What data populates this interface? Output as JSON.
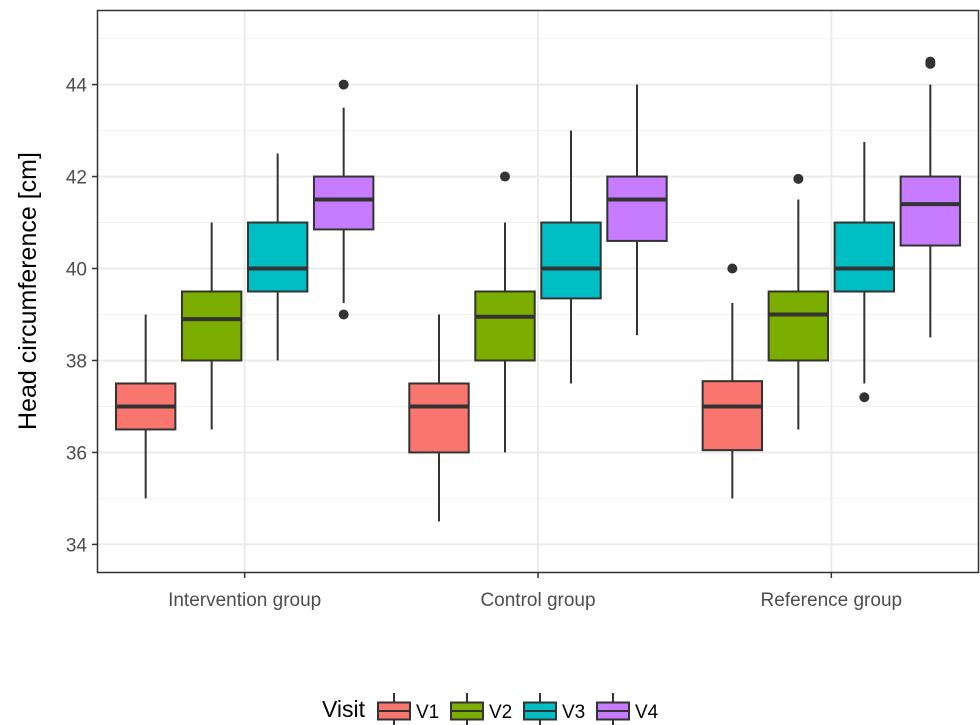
{
  "chart_data": {
    "type": "boxplot",
    "ylabel": "Head circumference [cm]",
    "xlabel": "",
    "ylim": [
      33.4,
      45.6
    ],
    "yticks": [
      34,
      36,
      38,
      40,
      42,
      44
    ],
    "grid": true,
    "legend": {
      "title": "Visit",
      "position": "bottom"
    },
    "categories": [
      "Intervention group",
      "Control group",
      "Reference group"
    ],
    "series": [
      {
        "name": "V1",
        "color": "#F8766D",
        "boxes": [
          {
            "whisker_low": 35.0,
            "q1": 36.5,
            "median": 37.0,
            "q3": 37.5,
            "whisker_high": 39.0,
            "outliers": []
          },
          {
            "whisker_low": 34.5,
            "q1": 36.0,
            "median": 37.0,
            "q3": 37.5,
            "whisker_high": 39.0,
            "outliers": []
          },
          {
            "whisker_low": 35.0,
            "q1": 36.05,
            "median": 37.0,
            "q3": 37.55,
            "whisker_high": 39.25,
            "outliers": [
              40.0
            ]
          }
        ]
      },
      {
        "name": "V2",
        "color": "#7CAE00",
        "boxes": [
          {
            "whisker_low": 36.5,
            "q1": 38.0,
            "median": 38.9,
            "q3": 39.5,
            "whisker_high": 41.0,
            "outliers": []
          },
          {
            "whisker_low": 36.0,
            "q1": 38.0,
            "median": 38.95,
            "q3": 39.5,
            "whisker_high": 41.0,
            "outliers": [
              42.0
            ]
          },
          {
            "whisker_low": 36.5,
            "q1": 38.0,
            "median": 39.0,
            "q3": 39.5,
            "whisker_high": 41.5,
            "outliers": [
              41.95
            ]
          }
        ]
      },
      {
        "name": "V3",
        "color": "#00BFC4",
        "boxes": [
          {
            "whisker_low": 38.0,
            "q1": 39.5,
            "median": 40.0,
            "q3": 41.0,
            "whisker_high": 42.5,
            "outliers": []
          },
          {
            "whisker_low": 37.5,
            "q1": 39.35,
            "median": 40.0,
            "q3": 41.0,
            "whisker_high": 43.0,
            "outliers": []
          },
          {
            "whisker_low": 37.5,
            "q1": 39.5,
            "median": 40.0,
            "q3": 41.0,
            "whisker_high": 42.75,
            "outliers": [
              37.2
            ]
          }
        ]
      },
      {
        "name": "V4",
        "color": "#C77CFF",
        "boxes": [
          {
            "whisker_low": 39.25,
            "q1": 40.85,
            "median": 41.5,
            "q3": 42.0,
            "whisker_high": 43.5,
            "outliers": [
              39.0,
              44.0
            ]
          },
          {
            "whisker_low": 38.55,
            "q1": 40.6,
            "median": 41.5,
            "q3": 42.0,
            "whisker_high": 44.0,
            "outliers": []
          },
          {
            "whisker_low": 38.5,
            "q1": 40.5,
            "median": 41.4,
            "q3": 42.0,
            "whisker_high": 44.0,
            "outliers": [
              44.45,
              44.5
            ]
          }
        ]
      }
    ]
  }
}
